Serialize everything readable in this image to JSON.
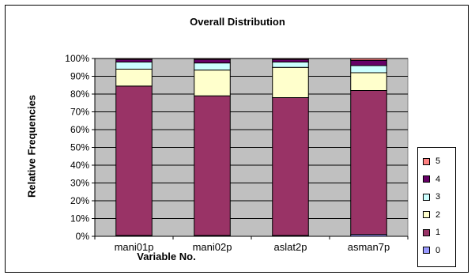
{
  "chart_data": {
    "type": "bar",
    "stacked": true,
    "title": "Overall Distribution",
    "xlabel": "Variable No.",
    "ylabel": "Relative Frequencies",
    "ylim": [
      0,
      100
    ],
    "y_ticks": [
      "0%",
      "10%",
      "20%",
      "30%",
      "40%",
      "50%",
      "60%",
      "70%",
      "80%",
      "90%",
      "100%"
    ],
    "categories": [
      "mani01p",
      "mani02p",
      "aslat2p",
      "asman7p"
    ],
    "series": [
      {
        "name": "0",
        "color": "#9999ff",
        "values": [
          0.5,
          0.5,
          0.5,
          1
        ]
      },
      {
        "name": "1",
        "color": "#993366",
        "values": [
          84,
          78.5,
          77.5,
          81
        ]
      },
      {
        "name": "2",
        "color": "#ffffcc",
        "values": [
          9.5,
          14.5,
          17,
          10
        ]
      },
      {
        "name": "3",
        "color": "#ccffff",
        "values": [
          4,
          4,
          3,
          4
        ]
      },
      {
        "name": "4",
        "color": "#660066",
        "values": [
          1.5,
          2,
          1.5,
          3
        ]
      },
      {
        "name": "5",
        "color": "#ff8080",
        "values": [
          0.5,
          0.5,
          0.5,
          1
        ]
      }
    ],
    "grid": true,
    "legend_position": "right",
    "plot_background": "#c0c0c0"
  }
}
